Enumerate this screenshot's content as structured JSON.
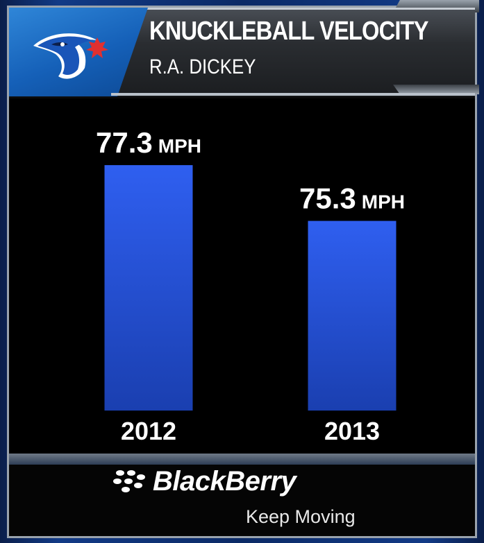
{
  "header": {
    "title": "KNUCKLEBALL VELOCITY",
    "subtitle": "R.A. DICKEY",
    "logo_icon": "blue-jays-logo-icon"
  },
  "chart_data": {
    "type": "bar",
    "title": "KNUCKLEBALL VELOCITY",
    "subtitle": "R.A. DICKEY",
    "categories": [
      "2012",
      "2013"
    ],
    "values": [
      77.3,
      75.3
    ],
    "labels": [
      "77.3",
      "75.3"
    ],
    "unit": "MPH",
    "xlabel": "",
    "ylabel": "",
    "ylim": [
      68.5,
      77.8
    ],
    "grid": false,
    "legend": "none",
    "bar_color": "#1f4fd8"
  },
  "sponsor": {
    "brand": "BlackBerry",
    "tagline": "Keep Moving",
    "logo_icon": "blackberry-logo-icon"
  },
  "colors": {
    "accent_blue": "#1560b8",
    "bar_top": "#2f5ff0",
    "bar_bottom": "#1a3fb0"
  }
}
